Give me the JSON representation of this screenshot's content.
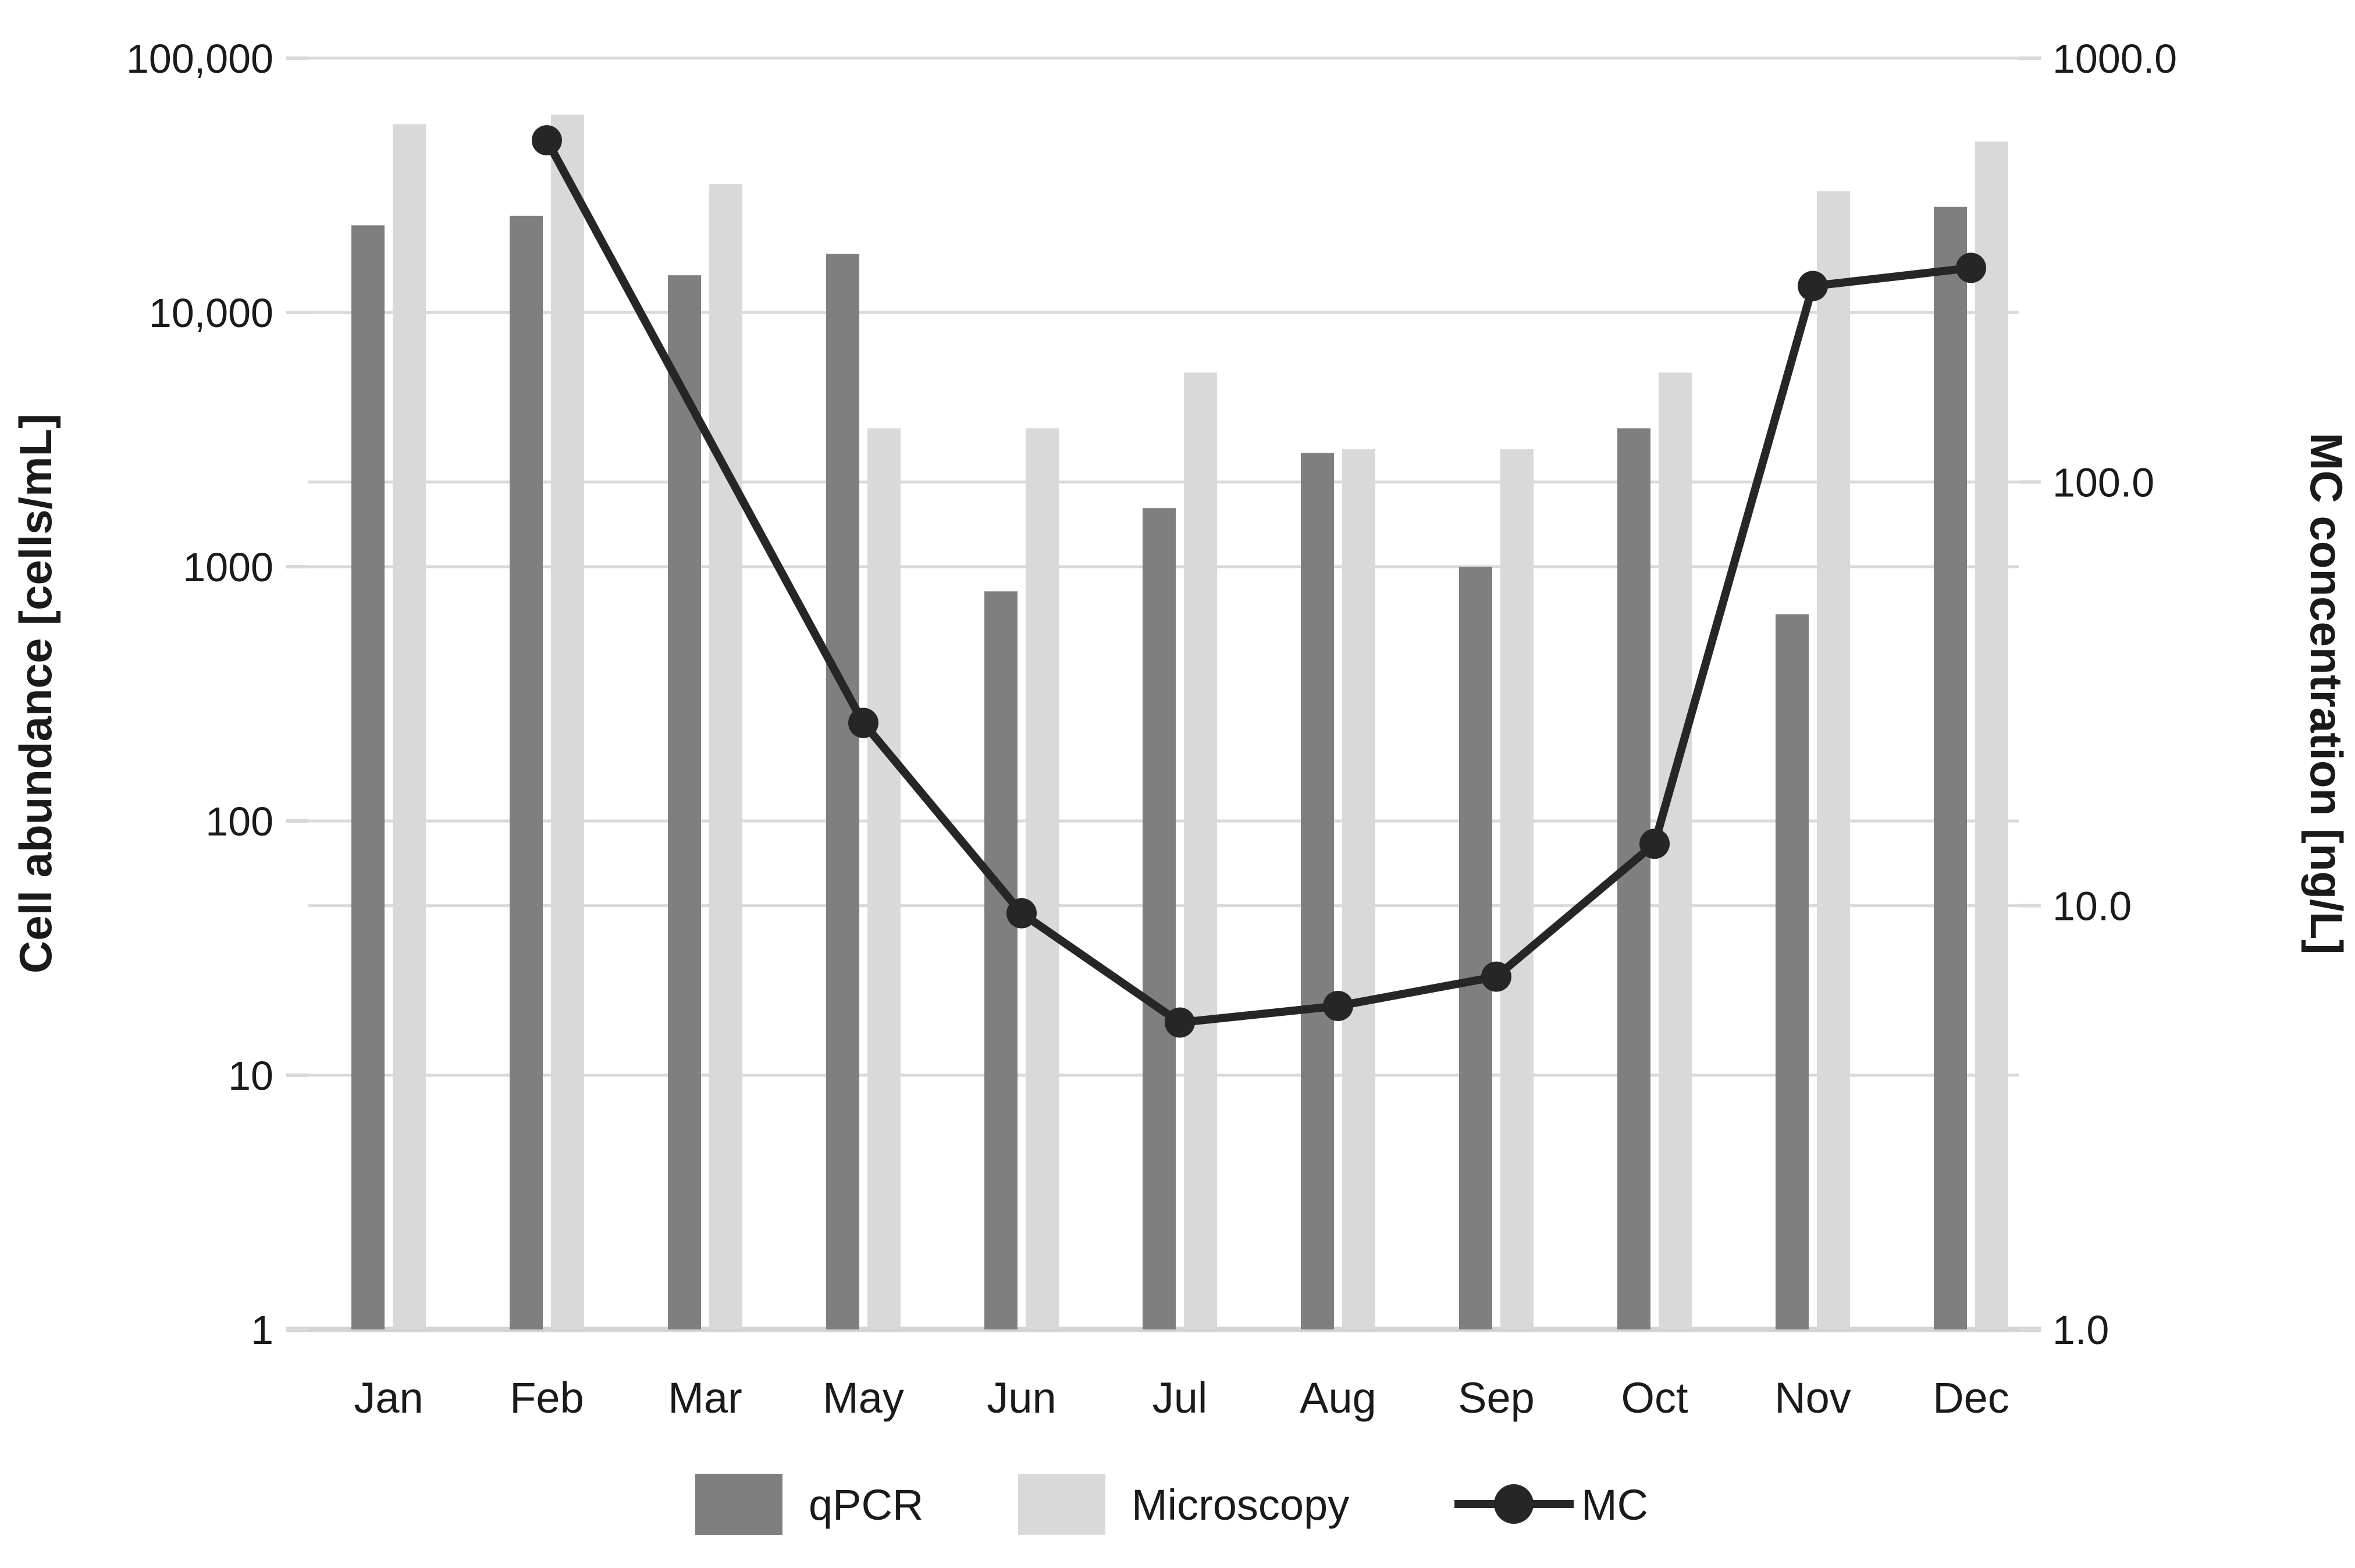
{
  "chart_data": {
    "type": "combo-bar-line",
    "title": "",
    "categories": [
      "Jan",
      "Feb",
      "Mar",
      "May",
      "Jun",
      "Jul",
      "Aug",
      "Sep",
      "Oct",
      "Nov",
      "Dec"
    ],
    "series": [
      {
        "name": "qPCR",
        "type": "bar",
        "axis": "left",
        "color": "#7f7f7f",
        "values": [
          22000,
          24000,
          14000,
          17000,
          800,
          1700,
          2800,
          1000,
          3500,
          650,
          26000
        ]
      },
      {
        "name": "Microscopy",
        "type": "bar",
        "axis": "left",
        "color": "#d9d9d9",
        "values": [
          55000,
          60000,
          32000,
          3500,
          3500,
          5800,
          2900,
          2900,
          5800,
          30000,
          47000
        ]
      },
      {
        "name": "MC",
        "type": "line",
        "axis": "right",
        "color": "#262626",
        "values": [
          null,
          640,
          null,
          27,
          9.6,
          5.3,
          5.8,
          6.8,
          14,
          290,
          320
        ]
      }
    ],
    "left_axis": {
      "label": "Cell abundance [cells/mL]",
      "scale": "log",
      "min": 1,
      "max": 100000,
      "ticks": [
        {
          "label": "100,000",
          "value": 100000
        },
        {
          "label": "10,000",
          "value": 10000
        },
        {
          "label": "1000",
          "value": 1000
        },
        {
          "label": "100",
          "value": 100
        },
        {
          "label": "10",
          "value": 10
        },
        {
          "label": "1",
          "value": 1
        }
      ],
      "grid_values": [
        10,
        100,
        1000,
        10000,
        100000
      ]
    },
    "right_axis": {
      "label": "MC concentration [ng/L]",
      "scale": "log",
      "min": 1,
      "max": 1000,
      "ticks": [
        {
          "label": "1000.0",
          "value": 1000
        },
        {
          "label": "100.0",
          "value": 100
        },
        {
          "label": "10.0",
          "value": 10
        },
        {
          "label": "1.0",
          "value": 1
        }
      ],
      "grid_values": [
        10,
        100
      ]
    },
    "legend": {
      "position": "bottom",
      "items": [
        "qPCR",
        "Microscopy",
        "MC"
      ]
    },
    "grid": true,
    "style": {
      "background": "#ffffff",
      "gridline_color": "#d9d9d9",
      "axis_line_color": "#d3d3d3",
      "text_color": "#1a1a1a",
      "marker_radius": 26,
      "line_width": 14
    }
  }
}
